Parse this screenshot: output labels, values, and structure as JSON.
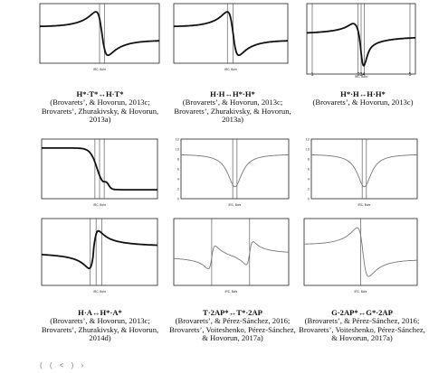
{
  "chart_data": [
    {
      "type": "line",
      "xlabel": "IRC, Bohr",
      "series": [
        {
          "values": "dispersion-up"
        }
      ]
    },
    {
      "type": "line",
      "xlabel": "IRC, Bohr",
      "series": [
        {
          "values": "dispersion-up"
        }
      ]
    },
    {
      "type": "line",
      "xlabel": "IRC, Bohr",
      "x_ticks": [
        "1",
        "234",
        "5"
      ],
      "series": [
        {
          "values": "spike-down"
        }
      ]
    },
    {
      "type": "line",
      "xlabel": "IRC, Bohr",
      "series": [
        {
          "values": "step-up"
        }
      ]
    },
    {
      "type": "line",
      "xlabel": "IRC, Bohr",
      "y_ticks": [
        "12",
        "10",
        "8",
        "6",
        "4",
        "2",
        "0"
      ],
      "series": [
        {
          "values": "peak"
        }
      ]
    },
    {
      "type": "line",
      "xlabel": "IRC, Bohr",
      "y_ticks": [
        "12",
        "10",
        "8",
        "6",
        "4",
        "2",
        "0"
      ],
      "series": [
        {
          "values": "peak"
        }
      ]
    },
    {
      "type": "line",
      "xlabel": "IRC, Bohr",
      "series": [
        {
          "values": "dispersion-down"
        }
      ]
    },
    {
      "type": "line",
      "xlabel": "IRC, Bohr",
      "series": [
        {
          "values": "double-dispersion"
        }
      ]
    },
    {
      "type": "line",
      "xlabel": "IRC, Bohr",
      "series": [
        {
          "values": "dispersion-up"
        }
      ]
    }
  ],
  "captions": [
    {
      "head": "H*·T*↔H·T*",
      "ref": "(Brovarets’, & Hovorun, 2013c; Brovarets’, Zhurakivsky, & Hovorun, 2013a)"
    },
    {
      "head": "H·H↔H*·H*",
      "ref": "(Brovarets’, & Hovorun, 2013c; Brovarets’, Zhurakivsky, & Hovorun, 2013a)"
    },
    {
      "head": "H*·H↔H·H*",
      "ref": "(Brovarets’, & Hovorun, 2013c)"
    },
    {
      "head": "H·A↔H*·A*",
      "ref": "(Brovarets’, & Hovorun, 2013c; Brovarets’, Zhurakivsky, & Hovorun, 2014d)"
    },
    {
      "head": "T·2AP*↔T*·2AP",
      "ref": "(Brovarets’, & Pérez-Sánchez, 2016; Brovarets’, Voiteshenko, Pérez-Sánchez, & Hovorun, 2017a)"
    },
    {
      "head": "G·2AP*↔G*·2AP",
      "ref": "(Brovarets’, & Pérez-Sánchez, 2016; Brovarets’, Voiteshenko, Pérez-Sánchez, & Hovorun, 2017a)"
    }
  ],
  "footer": "( (  < ) ›"
}
